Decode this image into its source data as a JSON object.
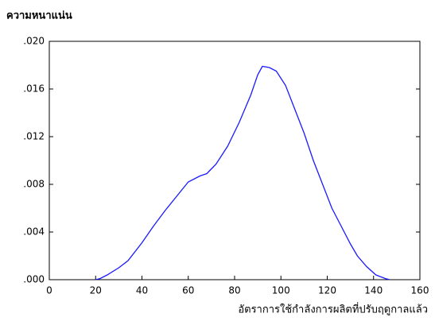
{
  "chart_data": {
    "type": "line",
    "title": "ความหนาแน่น",
    "x_label": "อัตราการใช้กำลังการผลิตที่ปรับฤดูกาลแล้ว",
    "x": [
      20,
      22,
      25,
      30,
      34,
      40,
      45,
      50,
      55,
      60,
      65,
      68,
      72,
      77,
      82,
      87,
      90,
      92,
      95,
      98,
      102,
      106,
      110,
      114,
      118,
      122,
      126,
      130,
      133,
      137,
      141,
      145,
      147
    ],
    "values": [
      0,
      0.0001,
      0.0004,
      0.001,
      0.0016,
      0.0031,
      0.0045,
      0.0058,
      0.007,
      0.0082,
      0.0087,
      0.0089,
      0.0097,
      0.0112,
      0.0132,
      0.0155,
      0.0172,
      0.0179,
      0.0178,
      0.0175,
      0.0163,
      0.0143,
      0.0123,
      0.01,
      0.008,
      0.006,
      0.0045,
      0.003,
      0.002,
      0.0011,
      0.0004,
      0.0001,
      0
    ],
    "color": "#1a1aff",
    "xlim": [
      0,
      160
    ],
    "xticks": [
      0,
      20,
      40,
      60,
      80,
      100,
      120,
      140,
      160
    ],
    "ylim": [
      0,
      0.02
    ],
    "yticks": [
      {
        "value": 0,
        "label": ".000"
      },
      {
        "value": 0.004,
        "label": ".004"
      },
      {
        "value": 0.008,
        "label": ".008"
      },
      {
        "value": 0.012,
        "label": ".012"
      },
      {
        "value": 0.016,
        "label": ".016"
      },
      {
        "value": 0.02,
        "label": ".020"
      }
    ],
    "grid": false
  }
}
